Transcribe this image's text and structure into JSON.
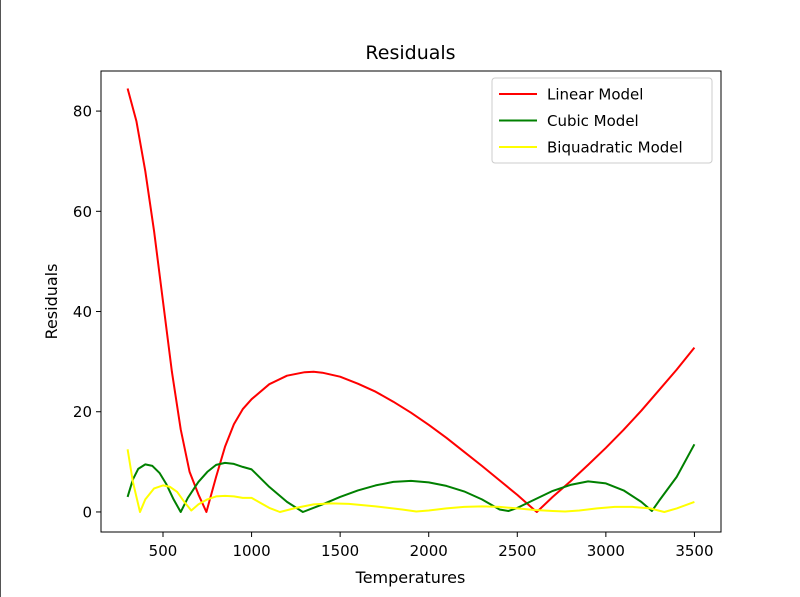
{
  "chart_data": {
    "type": "line",
    "title": "Residuals",
    "xlabel": "Temperatures",
    "ylabel": "Residuals",
    "xlim": [
      150,
      3650
    ],
    "ylim": [
      -4,
      88
    ],
    "xticks": [
      500,
      1000,
      1500,
      2000,
      2500,
      3000,
      3500
    ],
    "yticks": [
      0,
      20,
      40,
      60,
      80
    ],
    "grid": false,
    "legend_position": "upper right",
    "series": [
      {
        "name": "Linear Model",
        "color": "#ff0000",
        "points": [
          [
            300,
            84.5
          ],
          [
            350,
            78
          ],
          [
            400,
            68
          ],
          [
            450,
            56
          ],
          [
            500,
            42
          ],
          [
            550,
            28
          ],
          [
            600,
            16.5
          ],
          [
            650,
            8
          ],
          [
            700,
            3.5
          ],
          [
            745,
            0
          ],
          [
            800,
            7
          ],
          [
            850,
            13
          ],
          [
            900,
            17.5
          ],
          [
            950,
            20.5
          ],
          [
            1000,
            22.5
          ],
          [
            1100,
            25.5
          ],
          [
            1200,
            27.2
          ],
          [
            1300,
            27.9
          ],
          [
            1350,
            28
          ],
          [
            1400,
            27.8
          ],
          [
            1500,
            27
          ],
          [
            1600,
            25.6
          ],
          [
            1700,
            24
          ],
          [
            1800,
            22
          ],
          [
            1900,
            19.8
          ],
          [
            2000,
            17.4
          ],
          [
            2100,
            14.8
          ],
          [
            2200,
            12
          ],
          [
            2300,
            9.2
          ],
          [
            2400,
            6.3
          ],
          [
            2500,
            3.4
          ],
          [
            2600,
            0.3
          ],
          [
            2610,
            0
          ],
          [
            2700,
            3
          ],
          [
            2800,
            6.1
          ],
          [
            2900,
            9.4
          ],
          [
            3000,
            12.8
          ],
          [
            3100,
            16.4
          ],
          [
            3200,
            20.2
          ],
          [
            3300,
            24.3
          ],
          [
            3400,
            28.4
          ],
          [
            3500,
            32.8
          ]
        ]
      },
      {
        "name": "Cubic Model",
        "color": "#008000",
        "points": [
          [
            300,
            3
          ],
          [
            330,
            6.5
          ],
          [
            360,
            8.6
          ],
          [
            400,
            9.5
          ],
          [
            440,
            9.2
          ],
          [
            480,
            7.8
          ],
          [
            520,
            5.5
          ],
          [
            560,
            2.5
          ],
          [
            600,
            0
          ],
          [
            640,
            2.8
          ],
          [
            700,
            6
          ],
          [
            750,
            8
          ],
          [
            800,
            9.4
          ],
          [
            850,
            9.8
          ],
          [
            900,
            9.6
          ],
          [
            950,
            9
          ],
          [
            1000,
            8.5
          ],
          [
            1100,
            5
          ],
          [
            1200,
            2
          ],
          [
            1290,
            0
          ],
          [
            1400,
            1.5
          ],
          [
            1500,
            3
          ],
          [
            1600,
            4.3
          ],
          [
            1700,
            5.3
          ],
          [
            1800,
            6
          ],
          [
            1900,
            6.2
          ],
          [
            2000,
            5.9
          ],
          [
            2100,
            5.2
          ],
          [
            2200,
            4.1
          ],
          [
            2300,
            2.5
          ],
          [
            2400,
            0.5
          ],
          [
            2450,
            0.2
          ],
          [
            2500,
            0.8
          ],
          [
            2600,
            2.5
          ],
          [
            2700,
            4.2
          ],
          [
            2800,
            5.4
          ],
          [
            2900,
            6.1
          ],
          [
            3000,
            5.7
          ],
          [
            3100,
            4.3
          ],
          [
            3200,
            2
          ],
          [
            3260,
            0.2
          ],
          [
            3300,
            2.2
          ],
          [
            3400,
            7
          ],
          [
            3500,
            13.5
          ]
        ]
      },
      {
        "name": "Biquadratic Model",
        "color": "#ffff00",
        "points": [
          [
            300,
            12.5
          ],
          [
            330,
            6
          ],
          [
            370,
            0
          ],
          [
            400,
            2.5
          ],
          [
            450,
            4.7
          ],
          [
            500,
            5.3
          ],
          [
            540,
            5
          ],
          [
            580,
            4
          ],
          [
            620,
            2
          ],
          [
            660,
            0.3
          ],
          [
            700,
            1.5
          ],
          [
            750,
            2.5
          ],
          [
            800,
            3.1
          ],
          [
            850,
            3.2
          ],
          [
            900,
            3.1
          ],
          [
            950,
            2.8
          ],
          [
            1000,
            2.8
          ],
          [
            1050,
            1.8
          ],
          [
            1100,
            0.8
          ],
          [
            1160,
            0
          ],
          [
            1250,
            0.8
          ],
          [
            1350,
            1.5
          ],
          [
            1450,
            1.7
          ],
          [
            1550,
            1.6
          ],
          [
            1700,
            1.1
          ],
          [
            1850,
            0.5
          ],
          [
            1930,
            0.1
          ],
          [
            2000,
            0.3
          ],
          [
            2100,
            0.7
          ],
          [
            2200,
            1
          ],
          [
            2300,
            1.1
          ],
          [
            2400,
            1
          ],
          [
            2500,
            0.7
          ],
          [
            2600,
            0.4
          ],
          [
            2700,
            0.2
          ],
          [
            2770,
            0.1
          ],
          [
            2850,
            0.3
          ],
          [
            2950,
            0.7
          ],
          [
            3050,
            1
          ],
          [
            3150,
            1
          ],
          [
            3250,
            0.7
          ],
          [
            3330,
            0
          ],
          [
            3400,
            0.7
          ],
          [
            3500,
            2
          ]
        ]
      }
    ]
  }
}
